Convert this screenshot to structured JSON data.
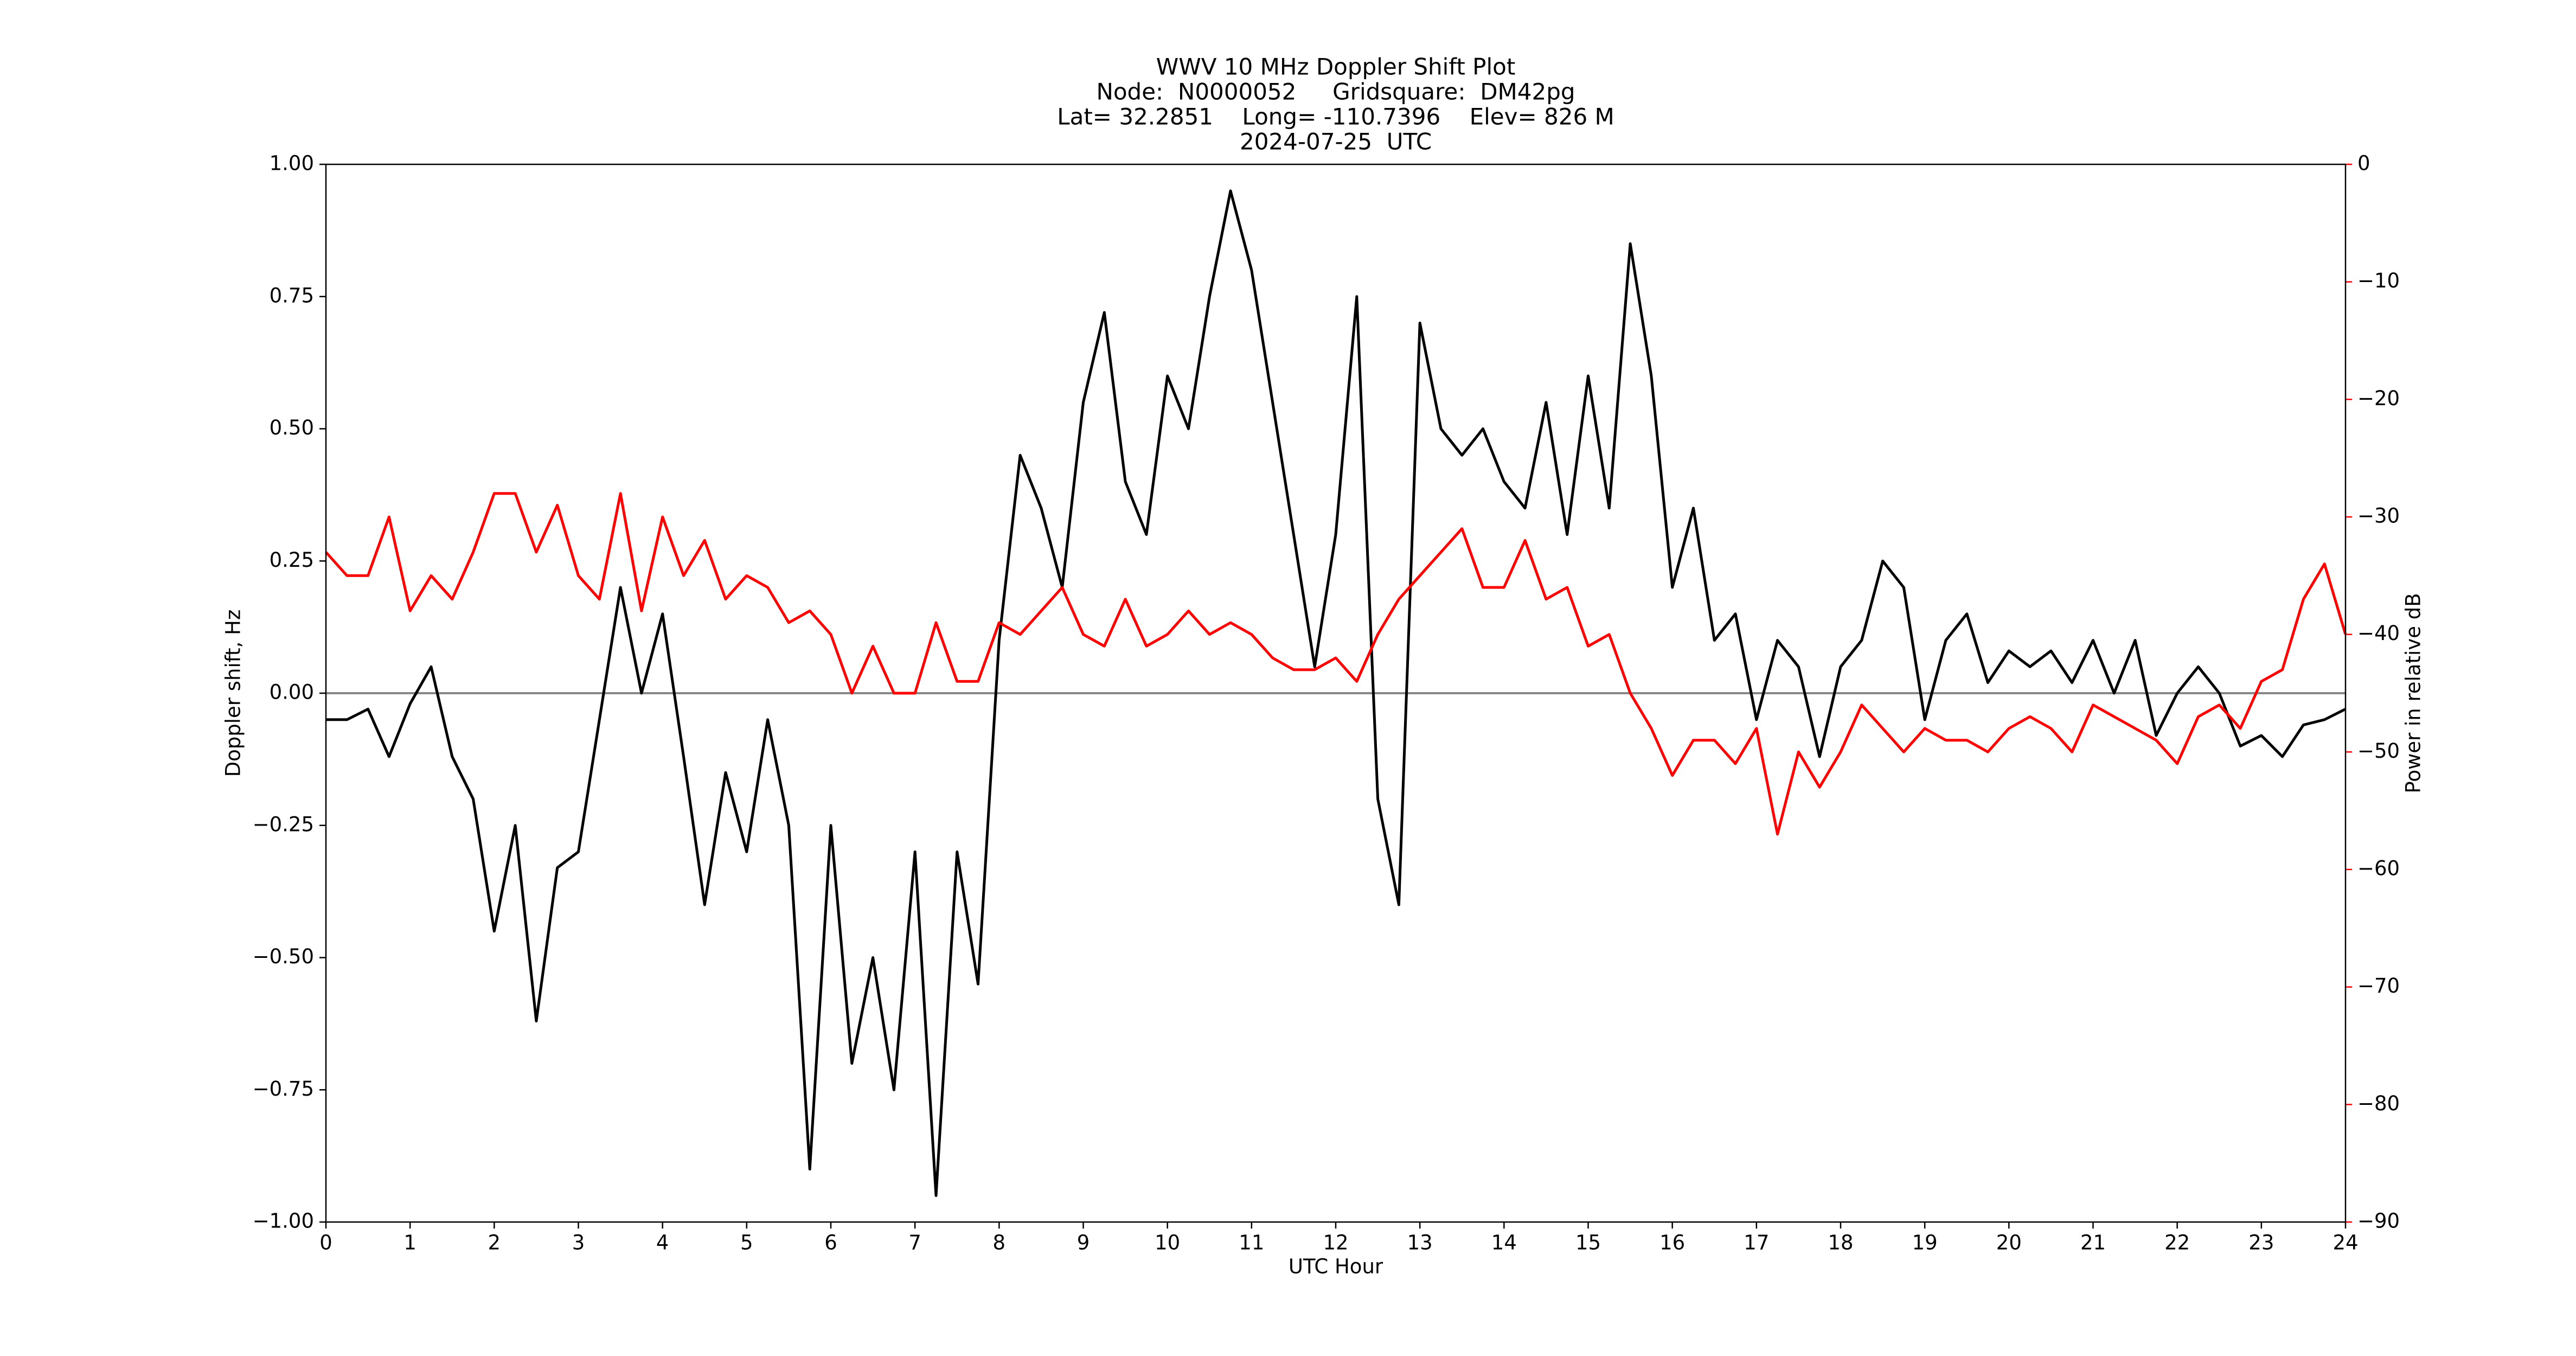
{
  "chart_data": {
    "type": "line",
    "title": [
      "WWV 10 MHz Doppler Shift Plot",
      "Node:  N0000052     Gridsquare:  DM42pg",
      "Lat= 32.2851    Long= -110.7396    Elev= 826 M",
      "2024-07-25  UTC"
    ],
    "x_label": "UTC Hour",
    "y_label": "Doppler shift, Hz",
    "y2_label": "Power in relative dB",
    "x": [
      0,
      0.25,
      0.5,
      0.75,
      1,
      1.25,
      1.5,
      1.75,
      2,
      2.25,
      2.5,
      2.75,
      3,
      3.25,
      3.5,
      3.75,
      4,
      4.25,
      4.5,
      4.75,
      5,
      5.25,
      5.5,
      5.75,
      6,
      6.25,
      6.5,
      6.75,
      7,
      7.25,
      7.5,
      7.75,
      8,
      8.25,
      8.5,
      8.75,
      9,
      9.25,
      9.5,
      9.75,
      10,
      10.25,
      10.5,
      10.75,
      11,
      11.25,
      11.5,
      11.75,
      12,
      12.25,
      12.5,
      12.75,
      13,
      13.25,
      13.5,
      13.75,
      14,
      14.25,
      14.5,
      14.75,
      15,
      15.25,
      15.5,
      15.75,
      16,
      16.25,
      16.5,
      16.75,
      17,
      17.25,
      17.5,
      17.75,
      18,
      18.25,
      18.5,
      18.75,
      19,
      19.25,
      19.5,
      19.75,
      20,
      20.25,
      20.5,
      20.75,
      21,
      21.25,
      21.5,
      21.75,
      22,
      22.25,
      22.5,
      22.75,
      23,
      23.25,
      23.5,
      23.75,
      24
    ],
    "series": [
      {
        "name": "Doppler shift",
        "color": "#000000",
        "values": [
          -0.05,
          -0.05,
          -0.03,
          -0.12,
          -0.02,
          0.05,
          -0.12,
          -0.2,
          -0.45,
          -0.25,
          -0.62,
          -0.33,
          -0.3,
          -0.05,
          0.2,
          0.0,
          0.15,
          -0.12,
          -0.4,
          -0.15,
          -0.3,
          -0.05,
          -0.25,
          -0.9,
          -0.25,
          -0.7,
          -0.5,
          -0.75,
          -0.3,
          -0.95,
          -0.3,
          -0.55,
          0.1,
          0.45,
          0.35,
          0.2,
          0.55,
          0.72,
          0.4,
          0.3,
          0.6,
          0.5,
          0.75,
          0.95,
          0.8,
          0.55,
          0.3,
          0.05,
          0.3,
          0.75,
          -0.2,
          -0.4,
          0.7,
          0.5,
          0.45,
          0.5,
          0.4,
          0.35,
          0.55,
          0.3,
          0.6,
          0.35,
          0.85,
          0.6,
          0.2,
          0.35,
          0.1,
          0.15,
          -0.05,
          0.1,
          0.05,
          -0.12,
          0.05,
          0.1,
          0.25,
          0.2,
          -0.05,
          0.1,
          0.15,
          0.02,
          0.08,
          0.05,
          0.08,
          0.02,
          0.1,
          0.0,
          0.1,
          -0.08,
          0.0,
          0.05,
          0.0,
          -0.1,
          -0.08,
          -0.12,
          -0.06,
          -0.05,
          -0.03
        ]
      },
      {
        "name": "Power",
        "color": "#ff0000",
        "axis": "y2",
        "values": [
          -33,
          -35,
          -35,
          -30,
          -38,
          -35,
          -37,
          -33,
          -28,
          -28,
          -33,
          -29,
          -35,
          -37,
          -28,
          -38,
          -30,
          -35,
          -32,
          -37,
          -35,
          -36,
          -39,
          -38,
          -40,
          -45,
          -41,
          -45,
          -45,
          -39,
          -44,
          -44,
          -39,
          -40,
          -38,
          -36,
          -40,
          -41,
          -37,
          -41,
          -40,
          -38,
          -40,
          -39,
          -40,
          -42,
          -43,
          -43,
          -42,
          -44,
          -40,
          -37,
          -35,
          -33,
          -31,
          -36,
          -36,
          -32,
          -37,
          -36,
          -41,
          -40,
          -45,
          -48,
          -52,
          -49,
          -49,
          -51,
          -48,
          -57,
          -50,
          -53,
          -50,
          -46,
          -48,
          -50,
          -48,
          -49,
          -49,
          -50,
          -48,
          -47,
          -48,
          -50,
          -46,
          -47,
          -48,
          -49,
          -51,
          -47,
          -46,
          -48,
          -44,
          -43,
          -37,
          -34,
          -40
        ]
      }
    ],
    "xlim": [
      0,
      24
    ],
    "xticks": [
      0,
      1,
      2,
      3,
      4,
      5,
      6,
      7,
      8,
      9,
      10,
      11,
      12,
      13,
      14,
      15,
      16,
      17,
      18,
      19,
      20,
      21,
      22,
      23,
      24
    ],
    "ylim": [
      -1,
      1
    ],
    "yticks": [
      {
        "value": -1,
        "label": "−1.00"
      },
      {
        "value": -0.75,
        "label": "−0.75"
      },
      {
        "value": -0.5,
        "label": "−0.50"
      },
      {
        "value": -0.25,
        "label": "−0.25"
      },
      {
        "value": 0,
        "label": "0.00"
      },
      {
        "value": 0.25,
        "label": "0.25"
      },
      {
        "value": 0.5,
        "label": "0.50"
      },
      {
        "value": 0.75,
        "label": "0.75"
      },
      {
        "value": 1,
        "label": "1.00"
      }
    ],
    "y2lim": [
      -90,
      0
    ],
    "y2ticks": [
      {
        "value": -90,
        "label": "−90"
      },
      {
        "value": -80,
        "label": "−80"
      },
      {
        "value": -70,
        "label": "−70"
      },
      {
        "value": -60,
        "label": "−60"
      },
      {
        "value": -50,
        "label": "−50"
      },
      {
        "value": -40,
        "label": "−40"
      },
      {
        "value": -30,
        "label": "−30"
      },
      {
        "value": -20,
        "label": "−20"
      },
      {
        "value": -10,
        "label": "−10"
      },
      0
    ],
    "y2_color": "#ff0000",
    "grid": false
  }
}
